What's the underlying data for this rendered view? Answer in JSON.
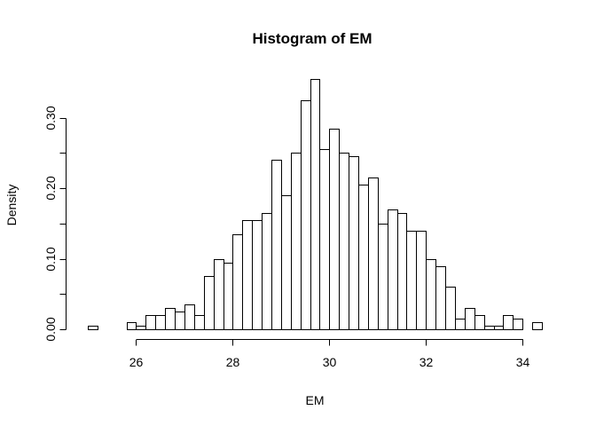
{
  "chart_data": {
    "type": "bar",
    "title": "Histogram of EM",
    "xlabel": "EM",
    "ylabel": "Density",
    "bin_width": 0.2,
    "bin_start": 25.0,
    "values": [
      0.005,
      0,
      0,
      0,
      0.01,
      0.005,
      0.02,
      0.02,
      0.03,
      0.025,
      0.035,
      0.02,
      0.075,
      0.1,
      0.095,
      0.135,
      0.155,
      0.155,
      0.165,
      0.24,
      0.19,
      0.25,
      0.325,
      0.355,
      0.255,
      0.285,
      0.25,
      0.245,
      0.205,
      0.215,
      0.15,
      0.17,
      0.165,
      0.14,
      0.14,
      0.1,
      0.09,
      0.06,
      0.015,
      0.03,
      0.02,
      0.005,
      0.005,
      0.02,
      0.015,
      0,
      0.01
    ],
    "xlim": [
      25,
      34.4
    ],
    "ylim": [
      0,
      0.355
    ],
    "x_ticks": [
      "26",
      "28",
      "30",
      "32",
      "34"
    ],
    "y_ticks": [
      "0.00",
      "0.10",
      "0.20",
      "0.30"
    ],
    "x_tick_values": [
      26,
      28,
      30,
      32,
      34
    ],
    "y_tick_values": [
      0,
      0.05,
      0.1,
      0.15,
      0.2,
      0.25,
      0.3
    ],
    "y_tick_labels_at": [
      0,
      0.1,
      0.2,
      0.3
    ],
    "grid": false,
    "legend": "none"
  }
}
